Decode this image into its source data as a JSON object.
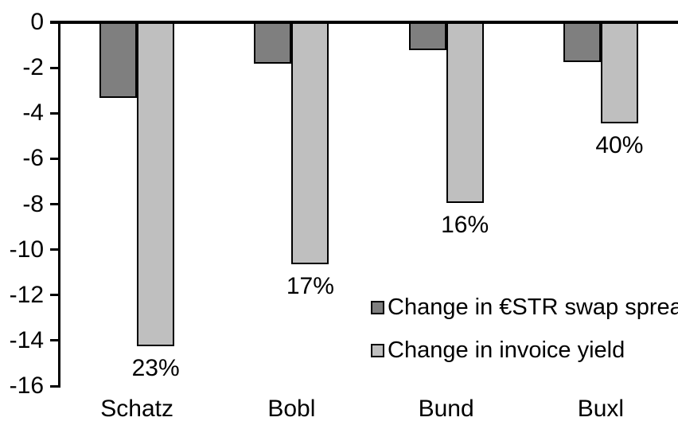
{
  "chart_data": {
    "type": "bar",
    "title": "",
    "categories": [
      "Schatz",
      "Bobl",
      "Bund",
      "Buxl"
    ],
    "series": [
      {
        "name": "Change in €STR swap spread",
        "color": "#7F7F7F",
        "values": [
          -3.3,
          -1.8,
          -1.2,
          -1.7
        ]
      },
      {
        "name": "Change in invoice yield",
        "color": "#BFBFBF",
        "values": [
          -14.2,
          -10.6,
          -7.9,
          -4.4
        ]
      }
    ],
    "data_labels": {
      "attached_to_series": "Change in invoice yield",
      "values": [
        "23%",
        "17%",
        "16%",
        "40%"
      ]
    },
    "xlabel": "",
    "ylabel": "",
    "ylim": [
      -16,
      0
    ],
    "yticks": [
      0,
      -2,
      -4,
      -6,
      -8,
      -10,
      -12,
      -14,
      -16
    ],
    "grid": false,
    "legend_position": "inside-center-right",
    "axis_color": "#000000",
    "bar_border_color": "#000000",
    "background_color": "#FFFFFF"
  }
}
